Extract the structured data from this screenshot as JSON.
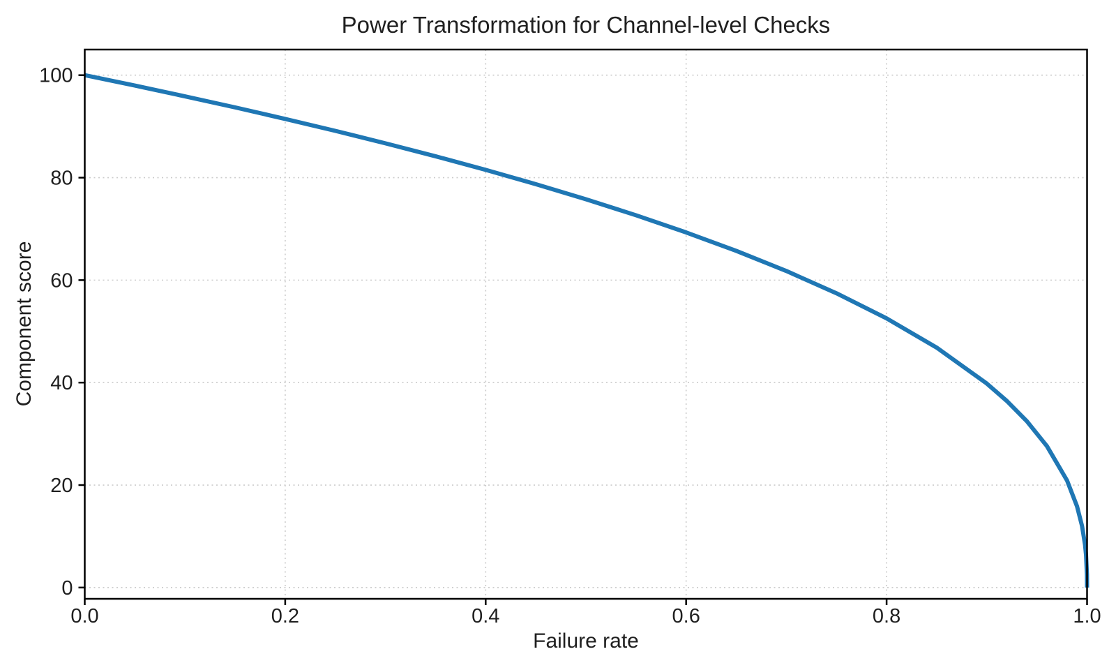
{
  "figure": {
    "background": "#ffffff"
  },
  "chart_data": {
    "type": "line",
    "title": "Power Transformation for Channel-level Checks",
    "xlabel": "Failure rate",
    "ylabel": "Component score",
    "xlim": [
      0,
      1
    ],
    "ylim": [
      -2.2,
      105
    ],
    "xticks": [
      0,
      0.2,
      0.4,
      0.6,
      0.8,
      1.0
    ],
    "xtick_labels": [
      "0.0",
      "0.2",
      "0.4",
      "0.6",
      "0.8",
      "1.0"
    ],
    "yticks": [
      0,
      20,
      40,
      60,
      80,
      100
    ],
    "ytick_labels": [
      "0",
      "20",
      "40",
      "60",
      "80",
      "100"
    ],
    "grid": true,
    "legend_position": "none",
    "style": {
      "line_color": "#1f77b4",
      "line_width": 6,
      "grid_color": "#cbcbcb",
      "spine_color": "#000000",
      "text_color": "#1f1f1f",
      "background": "#ffffff"
    },
    "series": [
      {
        "name": "Component score vs Failure rate",
        "x": [
          0,
          0.05,
          0.1,
          0.15,
          0.2,
          0.25,
          0.3,
          0.35,
          0.4,
          0.45,
          0.5,
          0.55,
          0.6,
          0.65,
          0.7,
          0.75,
          0.8,
          0.85,
          0.9,
          0.92,
          0.94,
          0.96,
          0.98,
          0.99,
          0.995,
          0.998,
          0.999,
          0.9999,
          1.0
        ],
        "y": [
          100,
          97.97,
          95.87,
          93.71,
          91.46,
          89.13,
          86.7,
          84.17,
          81.52,
          78.73,
          75.79,
          72.66,
          69.31,
          65.71,
          61.78,
          57.43,
          52.53,
          46.82,
          39.81,
          36.41,
          32.45,
          27.59,
          20.91,
          15.85,
          12.01,
          8.33,
          6.31,
          2.51,
          0
        ]
      }
    ]
  }
}
